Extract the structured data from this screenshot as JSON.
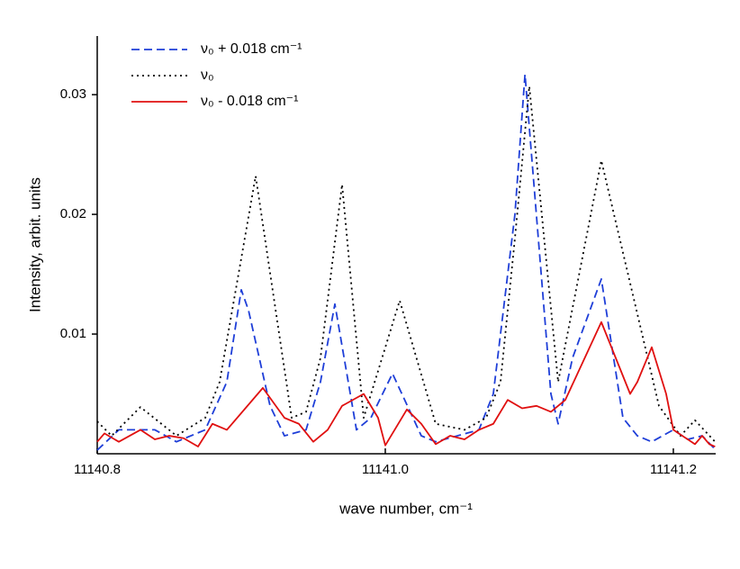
{
  "chart_data": {
    "type": "line",
    "x_label": "wave number, cm⁻¹",
    "y_label": "Intensity, arbit. units",
    "xlim": [
      11140.8,
      11141.2294
    ],
    "ylim": [
      0,
      0.0349
    ],
    "xticks": [
      11140.8,
      {
        "value": 11141,
        "label": "11141.0"
      },
      11141.2
    ],
    "yticks": [
      0.01,
      0.02,
      0.03
    ],
    "legend_position": "upper-left",
    "series": [
      {
        "name": "ν₀ + 0.018 cm⁻¹",
        "color": "#1f3fd8",
        "dash": "dashed",
        "x": [
          11140.8,
          11140.815,
          11140.84,
          11140.855,
          11140.875,
          11140.89,
          11140.9,
          11140.905,
          11140.92,
          11140.93,
          11140.945,
          11140.955,
          11140.965,
          11140.98,
          11140.99,
          11141.005,
          11141.025,
          11141.035,
          11141.05,
          11141.065,
          11141.075,
          11141.09,
          11141.097,
          11141.115,
          11141.12,
          11141.13,
          11141.15,
          11141.165,
          11141.175,
          11141.185,
          11141.2,
          11141.21,
          11141.22,
          11141.228
        ],
        "values": [
          0.0003,
          0.002,
          0.002,
          0.001,
          0.002,
          0.006,
          0.0137,
          0.012,
          0.004,
          0.0015,
          0.002,
          0.006,
          0.0125,
          0.002,
          0.003,
          0.0067,
          0.0015,
          0.001,
          0.0015,
          0.002,
          0.005,
          0.02,
          0.0317,
          0.005,
          0.0025,
          0.008,
          0.0146,
          0.003,
          0.0015,
          0.001,
          0.002,
          0.0012,
          0.0015,
          0.0005
        ]
      },
      {
        "name": "ν₀",
        "color": "#000000",
        "dash": "dotted",
        "x": [
          11140.8,
          11140.81,
          11140.83,
          11140.855,
          11140.875,
          11140.885,
          11140.91,
          11140.935,
          11140.945,
          11140.955,
          11140.97,
          11140.985,
          11141.01,
          11141.035,
          11141.055,
          11141.07,
          11141.08,
          11141.09,
          11141.1,
          11141.12,
          11141.15,
          11141.19,
          11141.205,
          11141.215,
          11141.229
        ],
        "values": [
          0.0027,
          0.0015,
          0.0039,
          0.0015,
          0.003,
          0.006,
          0.0232,
          0.003,
          0.0035,
          0.008,
          0.0225,
          0.003,
          0.0128,
          0.0025,
          0.002,
          0.003,
          0.006,
          0.018,
          0.0307,
          0.006,
          0.0245,
          0.004,
          0.0015,
          0.0028,
          0.001
        ]
      },
      {
        "name": "ν₀ - 0.018 cm⁻¹",
        "color": "#e01010",
        "dash": "solid",
        "x": [
          11140.8,
          11140.805,
          11140.815,
          11140.83,
          11140.84,
          11140.85,
          11140.86,
          11140.87,
          11140.88,
          11140.89,
          11140.915,
          11140.93,
          11140.94,
          11140.95,
          11140.96,
          11140.97,
          11140.985,
          11140.995,
          11141.0,
          11141.015,
          11141.025,
          11141.035,
          11141.045,
          11141.055,
          11141.065,
          11141.075,
          11141.085,
          11141.095,
          11141.105,
          11141.115,
          11141.125,
          11141.15,
          11141.16,
          11141.17,
          11141.175,
          11141.185,
          11141.195,
          11141.2,
          11141.21,
          11141.215,
          11141.22,
          11141.225,
          11141.229
        ],
        "values": [
          0.001,
          0.0017,
          0.001,
          0.002,
          0.0012,
          0.0015,
          0.0013,
          0.0006,
          0.0025,
          0.002,
          0.0055,
          0.003,
          0.0025,
          0.001,
          0.002,
          0.004,
          0.005,
          0.003,
          0.0007,
          0.0037,
          0.0025,
          0.0008,
          0.0015,
          0.0012,
          0.002,
          0.0025,
          0.0045,
          0.0038,
          0.004,
          0.0035,
          0.0045,
          0.011,
          0.008,
          0.005,
          0.006,
          0.0089,
          0.005,
          0.002,
          0.0012,
          0.0008,
          0.0015,
          0.0008,
          0.0006
        ]
      }
    ]
  }
}
